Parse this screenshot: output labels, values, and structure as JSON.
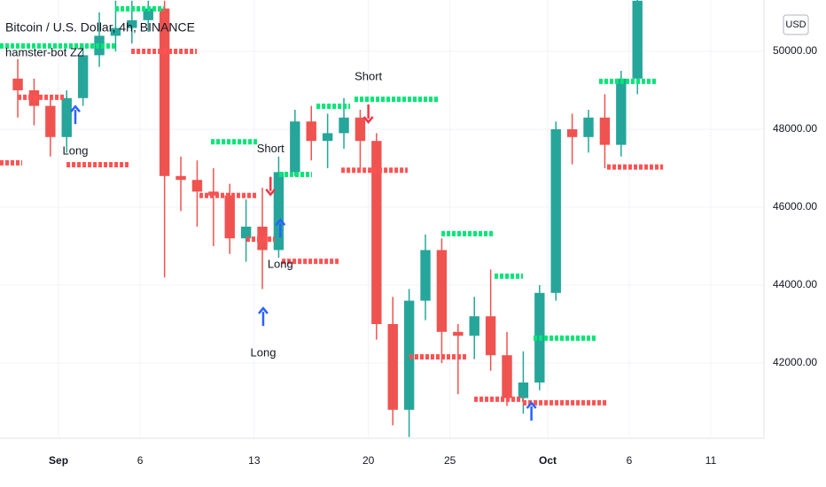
{
  "chart_data": {
    "type": "candlestick",
    "title": "Bitcoin / U.S. Dollar, 4h, BINANCE",
    "indicator": "hamster-bot ZZ",
    "currency": "USD",
    "x": [
      -2.5,
      -1.5,
      -0.5,
      0.5,
      1.5,
      2.5,
      3.5,
      4.5,
      5.5,
      6.5,
      7.5,
      8.5,
      9.5,
      10.5,
      11.5,
      12.5,
      13.5,
      14.5,
      15.5,
      16.5,
      17.5,
      18.5,
      19.5,
      20.5,
      21.5,
      22.5,
      23.5,
      24.5,
      25.5,
      26.5,
      27.5,
      28.5,
      29.5,
      30.5,
      31.5,
      32.5,
      33.5,
      34.5,
      35.5
    ],
    "open": [
      49300,
      49000,
      48600,
      47800,
      48800,
      49900,
      50400,
      50600,
      50800,
      51100,
      46800,
      46700,
      46400,
      46300,
      45200,
      45500,
      44900,
      46900,
      48200,
      47700,
      47900,
      48300,
      47700,
      43000,
      40800,
      43600,
      44900,
      42800,
      42700,
      43200,
      42200,
      41100,
      41500,
      43800,
      48000,
      47800,
      48300,
      47600,
      49300
    ],
    "high": [
      49800,
      49300,
      48800,
      49000,
      50200,
      51000,
      51300,
      51300,
      51300,
      51300,
      47300,
      47200,
      47000,
      46600,
      46200,
      46500,
      47300,
      48500,
      48600,
      48400,
      48800,
      48500,
      47900,
      43700,
      43900,
      45300,
      45200,
      43000,
      43700,
      44400,
      42800,
      42300,
      44000,
      48200,
      48400,
      48500,
      48900,
      49500,
      51500
    ],
    "low": [
      48300,
      48100,
      47300,
      47400,
      48600,
      49600,
      50000,
      50200,
      50500,
      44200,
      45900,
      45500,
      45000,
      44800,
      44600,
      43900,
      44700,
      46800,
      47200,
      47000,
      47500,
      46900,
      42600,
      40400,
      40100,
      43100,
      42000,
      41200,
      42100,
      41800,
      40900,
      40700,
      41300,
      43600,
      47100,
      47400,
      47000,
      47300,
      48900
    ],
    "close": [
      49000,
      48600,
      47800,
      48800,
      49900,
      50400,
      50600,
      50800,
      51100,
      46800,
      46700,
      46400,
      46300,
      45200,
      45500,
      44900,
      46900,
      48200,
      47700,
      47900,
      48300,
      47700,
      43000,
      40800,
      43600,
      44900,
      42800,
      42700,
      43200,
      42200,
      41100,
      41500,
      43800,
      48000,
      47800,
      48300,
      47600,
      49300,
      51300
    ],
    "up_color": "#26a69a",
    "down_color": "#ef5350",
    "xlim": [
      -3.59,
      43.26
    ],
    "xticks": [
      {
        "value": 0,
        "label": "Sep"
      },
      {
        "value": 5,
        "label": "6"
      },
      {
        "value": 12,
        "label": "13"
      },
      {
        "value": 19,
        "label": "20"
      },
      {
        "value": 24,
        "label": "25"
      },
      {
        "value": 30,
        "label": "Oct"
      },
      {
        "value": 35,
        "label": "6"
      },
      {
        "value": 40,
        "label": "11"
      }
    ],
    "ylim": [
      40068,
      51318
    ],
    "yticks": [
      {
        "value": 42000,
        "label": "42000.00"
      },
      {
        "value": 44000,
        "label": "44000.00"
      },
      {
        "value": 46000,
        "label": "46000.00"
      },
      {
        "value": 48000,
        "label": "48000.00"
      },
      {
        "value": 50000,
        "label": "50000.00"
      }
    ],
    "grid": true,
    "level_groups": [
      {
        "color": "#00e676",
        "segments": [
          {
            "x": [
              -3.59,
              3.48
            ],
            "value": 50140
          },
          {
            "x": [
              3.48,
              6.47
            ],
            "value": 51090
          },
          {
            "x": [
              9.35,
              12.17
            ],
            "value": 47680
          },
          {
            "x": [
              13.53,
              15.54
            ],
            "value": 46840
          },
          {
            "x": [
              15.82,
              17.88
            ],
            "value": 48590
          },
          {
            "x": [
              18.15,
              23.32
            ],
            "value": 48770
          },
          {
            "x": [
              23.48,
              26.63
            ],
            "value": 45320
          },
          {
            "x": [
              26.74,
              28.48
            ],
            "value": 44230
          },
          {
            "x": [
              29.13,
              32.93
            ],
            "value": 42640
          },
          {
            "x": [
              33.15,
              36.63
            ],
            "value": 49230
          }
        ]
      },
      {
        "color": "#ff5252",
        "segments": [
          {
            "x": [
              -3.59,
              -2.23
            ],
            "value": 47140
          },
          {
            "x": [
              -2.5,
              0.33
            ],
            "value": 48820
          },
          {
            "x": [
              0.49,
              4.29
            ],
            "value": 47090
          },
          {
            "x": [
              4.46,
              8.48
            ],
            "value": 50000
          },
          {
            "x": [
              8.64,
              12.17
            ],
            "value": 46300
          },
          {
            "x": [
              11.52,
              13.26
            ],
            "value": 45180
          },
          {
            "x": [
              13.7,
              17.17
            ],
            "value": 44610
          },
          {
            "x": [
              17.34,
              21.41
            ],
            "value": 46950
          },
          {
            "x": [
              21.52,
              25.11
            ],
            "value": 42160
          },
          {
            "x": [
              25.49,
              28.48
            ],
            "value": 41070
          },
          {
            "x": [
              28.48,
              33.64
            ],
            "value": 40980
          },
          {
            "x": [
              33.64,
              37.07
            ],
            "value": 47030
          }
        ]
      }
    ],
    "signals": [
      {
        "text": "Long",
        "x": 1.03,
        "value": 48360,
        "direction": "up",
        "color": "#2962ff"
      },
      {
        "text": "Short",
        "x": 13.0,
        "value": 46550,
        "direction": "down",
        "color": "#f23645"
      },
      {
        "text": "Long",
        "x": 13.6,
        "value": 45450,
        "direction": "up",
        "color": "#2962ff"
      },
      {
        "text": "Long",
        "x": 12.55,
        "value": 43180,
        "direction": "up",
        "color": "#2962ff"
      },
      {
        "text": "Short",
        "x": 19.0,
        "value": 48410,
        "direction": "down",
        "color": "#f23645"
      },
      {
        "x": 29.0,
        "value": 40750,
        "direction": "up",
        "color": "#2962ff"
      }
    ]
  }
}
